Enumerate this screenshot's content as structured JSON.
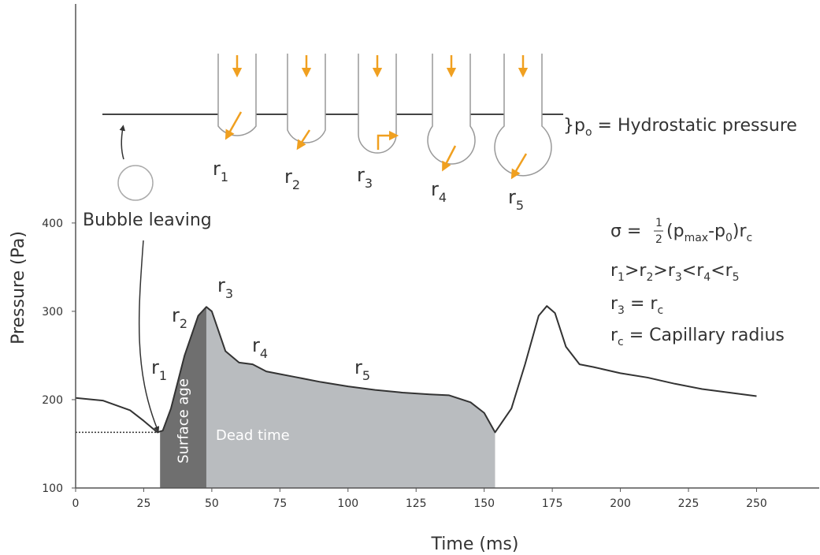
{
  "chart_data": {
    "type": "line",
    "xlabel": "Time (ms)",
    "ylabel": "Pressure (Pa)",
    "x": [
      0,
      10,
      20,
      25,
      30,
      32,
      35,
      40,
      45,
      48,
      50,
      55,
      60,
      65,
      70,
      75,
      80,
      90,
      100,
      110,
      120,
      130,
      137,
      145,
      150,
      154,
      160,
      165,
      170,
      173,
      176,
      180,
      185,
      190,
      200,
      210,
      220,
      230,
      240,
      250
    ],
    "series": [
      {
        "color": "#333333",
        "values": [
          202,
          199,
          188,
          176,
          163,
          165,
          190,
          250,
          295,
          305,
          300,
          255,
          242,
          240,
          232,
          229,
          226,
          220,
          215,
          211,
          208,
          206,
          205,
          197,
          185,
          163,
          190,
          240,
          295,
          306,
          298,
          260,
          240,
          237,
          230,
          225,
          218,
          212,
          208,
          204
        ]
      }
    ],
    "xlim": [
      0,
      273
    ],
    "ylim": [
      100,
      648
    ],
    "xticks": [
      0,
      25,
      50,
      75,
      100,
      125,
      150,
      175,
      200,
      225,
      250
    ],
    "yticks": [
      100,
      200,
      300,
      400
    ],
    "regions": [
      {
        "label": "Surface age",
        "x": [
          31,
          48
        ],
        "color": "#6f6f6f"
      },
      {
        "label": "Dead time",
        "x": [
          48,
          154
        ],
        "color": "#b9bcbf"
      }
    ],
    "baseline": {
      "y": 163,
      "x": [
        0,
        31
      ]
    },
    "curve_labels": [
      [
        "r",
        "1"
      ],
      [
        "r",
        "2"
      ],
      [
        "r",
        "3"
      ],
      [
        "r",
        "4"
      ],
      [
        "r",
        "5"
      ]
    ]
  },
  "diagram": {
    "bubble_labels": [
      [
        "r",
        "1"
      ],
      [
        "r",
        "2"
      ],
      [
        "r",
        "3"
      ],
      [
        "r",
        "4"
      ],
      [
        "r",
        "5"
      ]
    ],
    "hydrostatic": [
      "}p",
      "o",
      " = Hydrostatic pressure"
    ],
    "bubble_leaving": "Bubble leaving"
  },
  "formulas": {
    "sigma": [
      "σ = ",
      "1",
      "2",
      "(p",
      "max",
      "-p",
      "0",
      ")r",
      "c"
    ],
    "order": [
      "r",
      "1",
      ">r",
      "2",
      ">r",
      "3",
      "<r",
      "4",
      "<r",
      "5"
    ],
    "r3": [
      "r",
      "3",
      " = r",
      "c"
    ],
    "rc": [
      "r",
      "c",
      " = Capillary radius"
    ]
  }
}
